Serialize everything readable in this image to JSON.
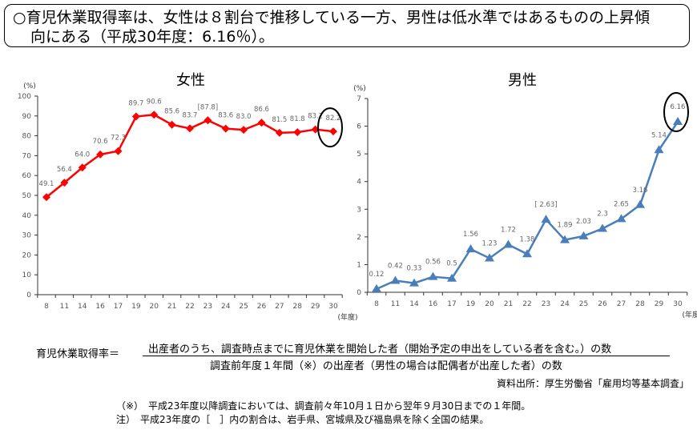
{
  "header": {
    "line1": "○育児休業取得率は、女性は８割台で推移している一方、男性は低水準ではあるものの上昇傾",
    "line2": "向にある（平成30年度：6.16％）。"
  },
  "chart_data": [
    {
      "type": "line",
      "title": "女性",
      "ylabel": "(%)",
      "xlabel": "(年度)",
      "ylim": [
        0,
        100
      ],
      "yticks": [
        0,
        10,
        20,
        30,
        40,
        50,
        60,
        70,
        80,
        90,
        100
      ],
      "categories": [
        "8",
        "11",
        "14",
        "16",
        "17",
        "19",
        "20",
        "21",
        "22",
        "23",
        "24",
        "25",
        "26",
        "27",
        "28",
        "29",
        "30"
      ],
      "values": [
        49.1,
        56.4,
        64.0,
        70.6,
        72.3,
        89.7,
        90.6,
        85.6,
        83.7,
        87.8,
        83.6,
        83.0,
        86.6,
        81.5,
        81.8,
        83.2,
        82.2
      ],
      "labels": [
        "49.1",
        "56.4",
        "64.0",
        "70.6",
        "72.3",
        "89.7",
        "90.6",
        "85.6",
        "83.7",
        "[87.8]",
        "83.6",
        "83.0",
        "86.6",
        "81.5",
        "81.8",
        "83.2",
        "82.2"
      ],
      "color": "#ff0000",
      "marker": "diamond",
      "highlight": "30"
    },
    {
      "type": "line",
      "title": "男性",
      "ylabel": "(%)",
      "xlabel": "(年度)",
      "ylim": [
        0,
        7
      ],
      "yticks": [
        0,
        1,
        2,
        3,
        4,
        5,
        6,
        7
      ],
      "categories": [
        "8",
        "11",
        "14",
        "16",
        "17",
        "19",
        "20",
        "21",
        "22",
        "23",
        "24",
        "25",
        "26",
        "27",
        "28",
        "29",
        "30"
      ],
      "values": [
        0.12,
        0.42,
        0.33,
        0.56,
        0.5,
        1.56,
        1.23,
        1.72,
        1.38,
        2.63,
        1.89,
        2.03,
        2.3,
        2.65,
        3.16,
        5.14,
        6.16
      ],
      "labels": [
        "0.12",
        "0.42",
        "0.33",
        "0.56",
        "0.5",
        "1.56",
        "1.23",
        "1.72",
        "1.38",
        "[ 2.63]",
        "1.89",
        "2.03",
        "2.3",
        "2.65",
        "3.16",
        "5.14",
        "6.16"
      ],
      "color": "#4a7ebb",
      "marker": "triangle",
      "highlight": "30"
    }
  ],
  "formula": {
    "label": "育児休業取得率＝",
    "numerator": "出産者のうち、調査時点までに育児休業を開始した者（開始予定の申出をしている者を含む。）の数",
    "denominator": "調査前年度１年間（※）の出産者（男性の場合は配偶者が出産した者）の数"
  },
  "source": "資料出所：厚生労働省「雇用均等基本調査」",
  "notes": [
    "（※）　平成23年度以降調査においては、調査前々年10月１日から翌年９月30日までの１年間。",
    "注）　平成23年度の［　］内の割合は、岩手県、宮城県及び福島県を除く全国の結果。"
  ]
}
